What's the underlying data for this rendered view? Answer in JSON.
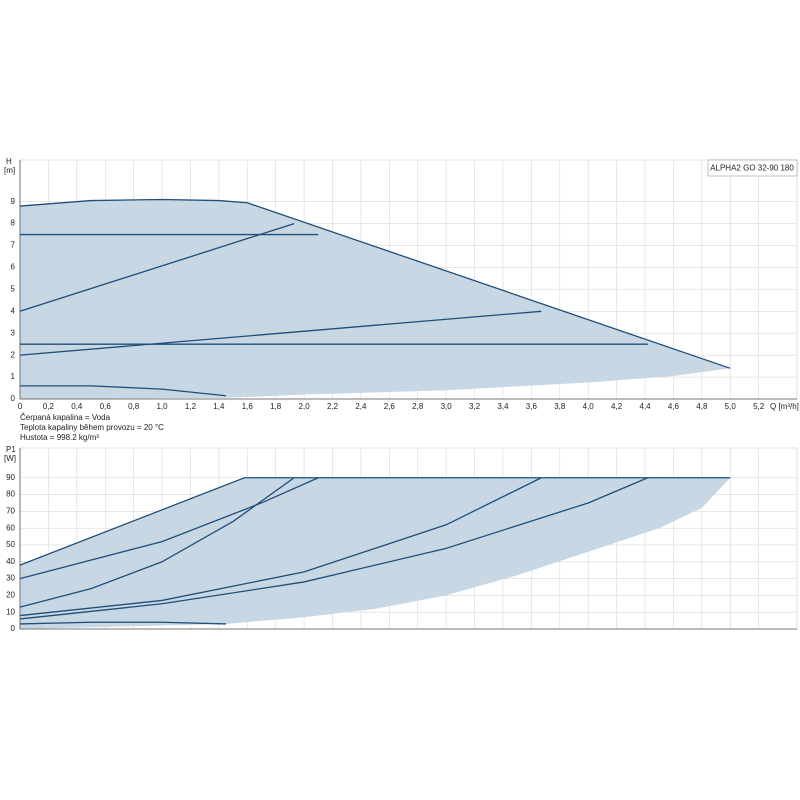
{
  "title": "ALPHA2 GO 32-90 180",
  "notes": [
    "Čerpaná kapalina = Voda",
    "Teplota kapaliny během provozu = 20 °C",
    "Hustota = 998.2 kg/m³"
  ],
  "chart_data": [
    {
      "type": "line",
      "ylabel": "H",
      "yunit": "[m]",
      "xlabel": "Q [m³/h]",
      "xlim": [
        0,
        5.47
      ],
      "ylim": [
        0,
        10.9
      ],
      "xticks": [
        0,
        {
          "value": 0.2,
          "label": "0,2"
        },
        {
          "value": 0.4,
          "label": "0,4"
        },
        {
          "value": 0.6,
          "label": "0,6"
        },
        {
          "value": 0.8,
          "label": "0,8"
        },
        {
          "value": 1,
          "label": "1,0"
        },
        {
          "value": 1.2,
          "label": "1,2"
        },
        {
          "value": 1.4,
          "label": "1,4"
        },
        {
          "value": 1.6,
          "label": "1,6"
        },
        {
          "value": 1.8,
          "label": "1,8"
        },
        {
          "value": 2,
          "label": "2,0"
        },
        {
          "value": 2.2,
          "label": "2,2"
        },
        {
          "value": 2.4,
          "label": "2,4"
        },
        {
          "value": 2.6,
          "label": "2,6"
        },
        {
          "value": 2.8,
          "label": "2,8"
        },
        {
          "value": 3,
          "label": "3,0"
        },
        {
          "value": 3.2,
          "label": "3,2"
        },
        {
          "value": 3.4,
          "label": "3,4"
        },
        {
          "value": 3.6,
          "label": "3,6"
        },
        {
          "value": 3.8,
          "label": "3,8"
        },
        {
          "value": 4,
          "label": "4,0"
        },
        {
          "value": 4.2,
          "label": "4,2"
        },
        {
          "value": 4.4,
          "label": "4,4"
        },
        {
          "value": 4.6,
          "label": "4,6"
        },
        {
          "value": 4.8,
          "label": "4,8"
        },
        {
          "value": 5,
          "label": "5,0"
        },
        {
          "value": 5.2,
          "label": "5,2"
        }
      ],
      "yticks": [
        0,
        1,
        2,
        3,
        4,
        5,
        6,
        7,
        8,
        9
      ],
      "grid": true,
      "line_color": "#1f4e79",
      "area": {
        "color": "#c8d7e4",
        "x": [
          0,
          0,
          0.5,
          1.0,
          1.4,
          1.6,
          5.0,
          4.6,
          4.0,
          3.0,
          2.0,
          1.45,
          0
        ],
        "values": [
          0,
          8.8,
          9.05,
          9.1,
          9.05,
          8.95,
          1.4,
          1.05,
          0.75,
          0.4,
          0.2,
          0.05,
          0
        ]
      },
      "series": [
        {
          "x": [
            0,
            0.5,
            1.0,
            1.4,
            1.6,
            5.0
          ],
          "values": [
            8.8,
            9.05,
            9.1,
            9.05,
            8.95,
            1.4
          ]
        },
        {
          "x": [
            0,
            2.1
          ],
          "values": [
            7.5,
            7.5
          ]
        },
        {
          "x": [
            0,
            1.93
          ],
          "values": [
            4,
            8
          ]
        },
        {
          "x": [
            0,
            4.42
          ],
          "values": [
            2.5,
            2.5
          ]
        },
        {
          "x": [
            0,
            3.67
          ],
          "values": [
            2,
            4
          ]
        },
        {
          "x": [
            0,
            0.5,
            1.0,
            1.45
          ],
          "values": [
            0.6,
            0.6,
            0.45,
            0.15
          ]
        }
      ]
    },
    {
      "type": "line",
      "ylabel": "P1",
      "yunit": "[W]",
      "xlim": [
        0,
        5.47
      ],
      "ylim": [
        0,
        107.7
      ],
      "yticks": [
        0,
        10,
        20,
        30,
        40,
        50,
        60,
        70,
        80,
        90
      ],
      "grid": true,
      "line_color": "#1f4e79",
      "area": {
        "color": "#c8d7e4",
        "x": [
          0,
          0,
          1.58,
          5.0,
          4.8,
          4.5,
          4.0,
          3.5,
          3.0,
          2.5,
          2.0,
          1.45,
          0
        ],
        "values": [
          0,
          38,
          90,
          90,
          72,
          60,
          46,
          32,
          20,
          12,
          7,
          3,
          0
        ]
      },
      "series": [
        {
          "x": [
            0,
            1.58,
            5.0
          ],
          "values": [
            38,
            90,
            90
          ]
        },
        {
          "x": [
            0,
            1.0,
            1.7,
            2.1
          ],
          "values": [
            30,
            52,
            75,
            90
          ]
        },
        {
          "x": [
            0,
            0.5,
            1.0,
            1.5,
            1.93
          ],
          "values": [
            13,
            24,
            40,
            64,
            90
          ]
        },
        {
          "x": [
            0,
            1.0,
            2.0,
            3.0,
            3.67
          ],
          "values": [
            8,
            17,
            34,
            62,
            90
          ]
        },
        {
          "x": [
            0,
            1.0,
            2.0,
            3.0,
            4.0,
            4.42
          ],
          "values": [
            6,
            15,
            28,
            48,
            75,
            90
          ]
        },
        {
          "x": [
            0,
            0.5,
            1.0,
            1.45
          ],
          "values": [
            3,
            4,
            4,
            3
          ]
        }
      ]
    }
  ]
}
